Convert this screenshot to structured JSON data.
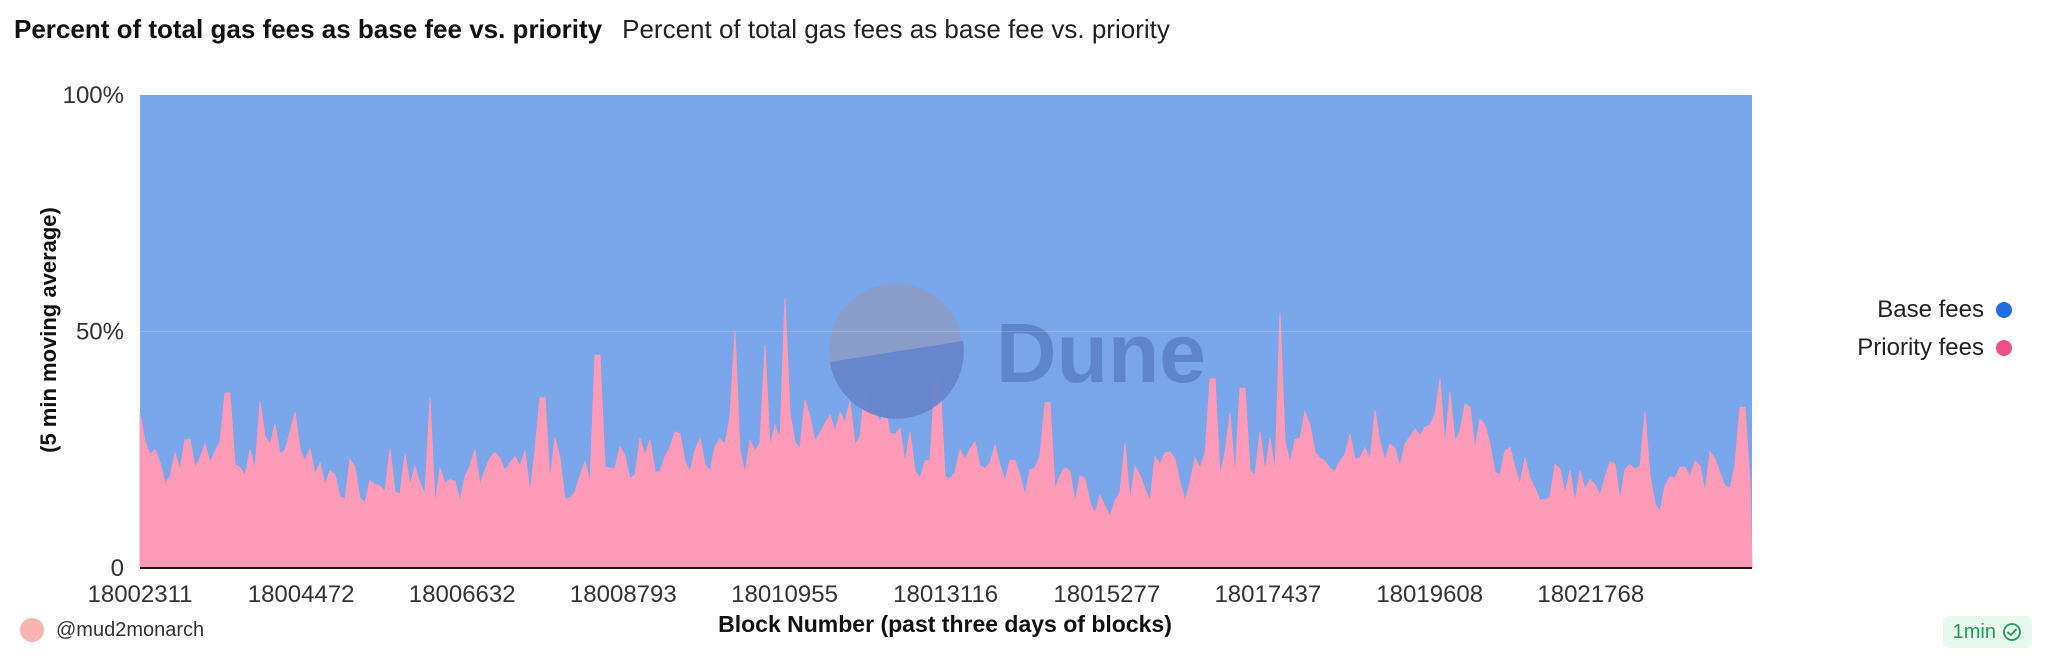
{
  "header": {
    "title": "Percent of total gas fees as base fee vs. priority",
    "subtitle": "Percent of total gas fees as base fee vs. priority"
  },
  "watermark": {
    "text": "Dune"
  },
  "footer": {
    "author": "@mud2monarch",
    "refresh": "1min",
    "refresh_icon": "check-circle-icon"
  },
  "colors": {
    "base": "#78a6e8",
    "priority": "#fc9ab8",
    "base_legend": "#1f6fde",
    "priority_legend": "#f0508a",
    "grid": "#d8dee8",
    "axis": "#1a1a1a"
  },
  "chart_data": {
    "type": "area",
    "stacked": true,
    "stack_mode": "percent",
    "title": "Percent of total gas fees as base fee vs. priority",
    "subtitle": "Percent of total gas fees as base fee vs. priority",
    "xlabel": "Block Number (past three days of blocks)",
    "ylabel": "(5 min moving average)",
    "ylim": [
      0,
      100
    ],
    "y_ticks": [
      {
        "value": 0,
        "label": "0"
      },
      {
        "value": 50,
        "label": "50%"
      },
      {
        "value": 100,
        "label": "100%"
      }
    ],
    "x_ticks": [
      18002311,
      18004472,
      18006632,
      18008793,
      18010955,
      18013116,
      18015277,
      18017437,
      18019608,
      18021768
    ],
    "x_tick_labels": [
      "18002311",
      "18004472",
      "18006632",
      "18008793",
      "18010955",
      "18013116",
      "18015277",
      "18017437",
      "18019608",
      "18021768"
    ],
    "xlim": [
      18002311,
      18023930
    ],
    "legend_position": "right",
    "grid": true,
    "series": [
      {
        "name": "Base fees",
        "description": "complement of priority (100 - priority %)"
      },
      {
        "name": "Priority fees",
        "x": [
          18002311,
          18002651,
          18002991,
          18003331,
          18003671,
          18004011,
          18004351,
          18004691,
          18005031,
          18005371,
          18005711,
          18006051,
          18006391,
          18006731,
          18007071,
          18007411,
          18007751,
          18008091,
          18008431,
          18008771,
          18009111,
          18009451,
          18009791,
          18010131,
          18010471,
          18010811,
          18011151,
          18011491,
          18011831,
          18012171,
          18012511,
          18012851,
          18013191,
          18013531,
          18013871,
          18014211,
          18014551,
          18014891,
          18015231,
          18015571,
          18015911,
          18016251,
          18016591,
          18016931,
          18017271,
          18017611,
          18017951,
          18018291,
          18018631,
          18018971,
          18019311,
          18019651,
          18019991,
          18020331,
          18020671,
          18021011,
          18021351,
          18021691,
          18022031,
          18022371,
          18022711,
          18023051,
          18023391,
          18023731
        ],
        "values": [
          28,
          21,
          24,
          26,
          22,
          25,
          27,
          20,
          18,
          19,
          21,
          17,
          19,
          18,
          20,
          22,
          19,
          18,
          21,
          24,
          22,
          25,
          23,
          26,
          24,
          28,
          30,
          33,
          31,
          29,
          27,
          23,
          21,
          25,
          22,
          20,
          18,
          16,
          15,
          17,
          19,
          18,
          20,
          23,
          22,
          24,
          26,
          24,
          28,
          27,
          25,
          29,
          32,
          28,
          21,
          19,
          17,
          18,
          20,
          17,
          16,
          19,
          21,
          16
        ],
        "spikes": [
          {
            "x": 18010955,
            "value": 57
          },
          {
            "x": 18010700,
            "value": 47
          },
          {
            "x": 18010300,
            "value": 50
          },
          {
            "x": 18008450,
            "value": 45
          },
          {
            "x": 18013000,
            "value": 40
          },
          {
            "x": 18017600,
            "value": 54
          },
          {
            "x": 18016700,
            "value": 40
          },
          {
            "x": 18017100,
            "value": 38
          },
          {
            "x": 18006200,
            "value": 36
          },
          {
            "x": 18003500,
            "value": 37
          },
          {
            "x": 18007700,
            "value": 36
          },
          {
            "x": 18014500,
            "value": 35
          },
          {
            "x": 18020100,
            "value": 34
          },
          {
            "x": 18022500,
            "value": 33
          },
          {
            "x": 18023800,
            "value": 34
          }
        ]
      }
    ]
  }
}
